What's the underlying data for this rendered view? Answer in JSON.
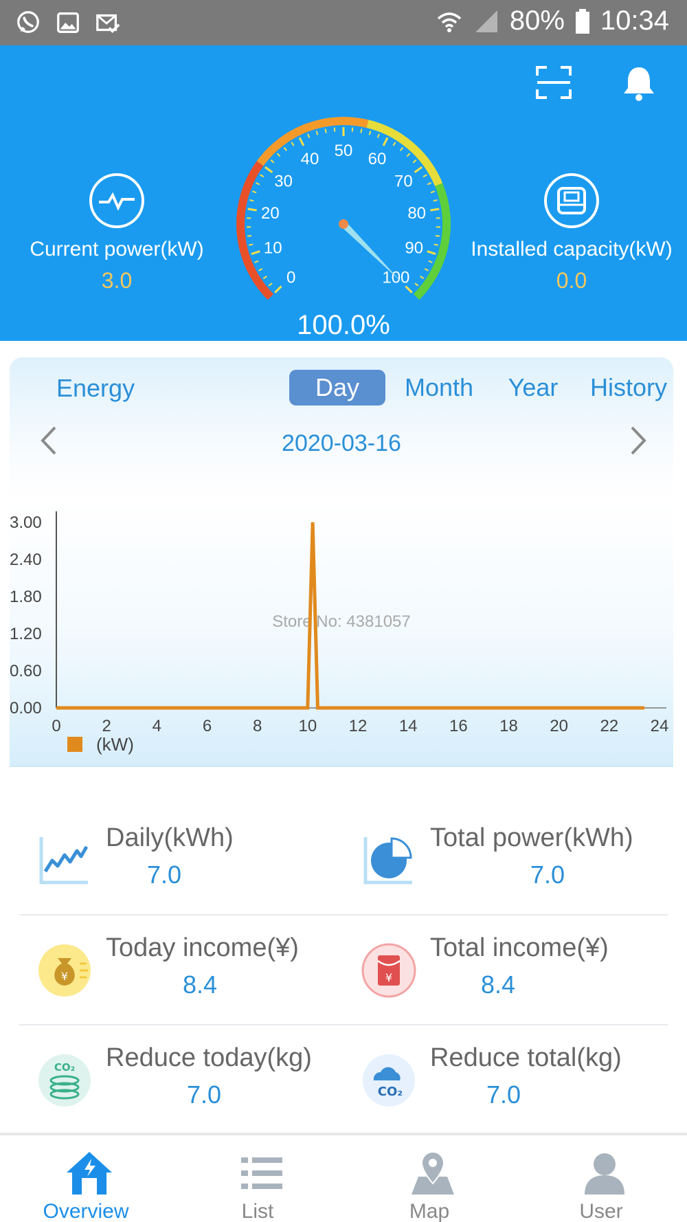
{
  "status_bar": {
    "battery": "80%",
    "time": "10:34",
    "icons": [
      "whatsapp-icon",
      "image-icon",
      "mail-check-icon",
      "wifi-icon",
      "signal-icon",
      "battery-icon"
    ]
  },
  "header": {
    "actions": [
      "scan-icon",
      "bell-icon"
    ],
    "current_power": {
      "label": "Current power(kW)",
      "value": "3.0",
      "icon": "pulse-icon"
    },
    "installed_capacity": {
      "label": "Installed capacity(kW)",
      "value": "0.0",
      "icon": "inverter-icon"
    },
    "gauge": {
      "percent_text": "100.0%",
      "value": 100,
      "ticks": [
        "0",
        "10",
        "20",
        "30",
        "40",
        "50",
        "60",
        "70",
        "80",
        "90",
        "100"
      ]
    }
  },
  "energy": {
    "title": "Energy",
    "tabs": [
      "Day",
      "Month",
      "Year",
      "History"
    ],
    "active_tab": "Day",
    "date": "2020-03-16",
    "watermark": "Store No: 4381057",
    "legend": "(kW)"
  },
  "chart_data": {
    "type": "line",
    "x": [
      0,
      10,
      10.2,
      10.4,
      24
    ],
    "values": [
      0,
      0,
      3.0,
      0,
      0
    ],
    "xticks": [
      "0",
      "2",
      "4",
      "6",
      "8",
      "10",
      "12",
      "14",
      "16",
      "18",
      "20",
      "22",
      "24"
    ],
    "yticks": [
      "0.00",
      "0.60",
      "1.20",
      "1.80",
      "2.40",
      "3.00"
    ],
    "xlim": [
      0,
      24
    ],
    "ylim": [
      0,
      3.0
    ],
    "color": "#e08a1e",
    "legend": "(kW)"
  },
  "stats": [
    [
      {
        "label": "Daily(kWh)",
        "value": "7.0",
        "icon": "trend-chart-icon"
      },
      {
        "label": "Total power(kWh)",
        "value": "7.0",
        "icon": "pie-chart-icon"
      }
    ],
    [
      {
        "label": "Today income(¥)",
        "value": "8.4",
        "icon": "money-bag-icon"
      },
      {
        "label": "Total income(¥)",
        "value": "8.4",
        "icon": "red-envelope-icon"
      }
    ],
    [
      {
        "label": "Reduce today(kg)",
        "value": "7.0",
        "icon": "co2-coins-icon"
      },
      {
        "label": "Reduce total(kg)",
        "value": "7.0",
        "icon": "co2-cloud-icon"
      }
    ]
  ],
  "nav": [
    {
      "label": "Overview",
      "icon": "home-icon",
      "active": true
    },
    {
      "label": "List",
      "icon": "list-icon",
      "active": false
    },
    {
      "label": "Map",
      "icon": "map-icon",
      "active": false
    },
    {
      "label": "User",
      "icon": "user-icon",
      "active": false
    }
  ],
  "colors": {
    "primary": "#1a9bf0",
    "accent_value": "#f6c75c",
    "text_blue": "#2a8fd8",
    "chart_line": "#e08a1e"
  }
}
